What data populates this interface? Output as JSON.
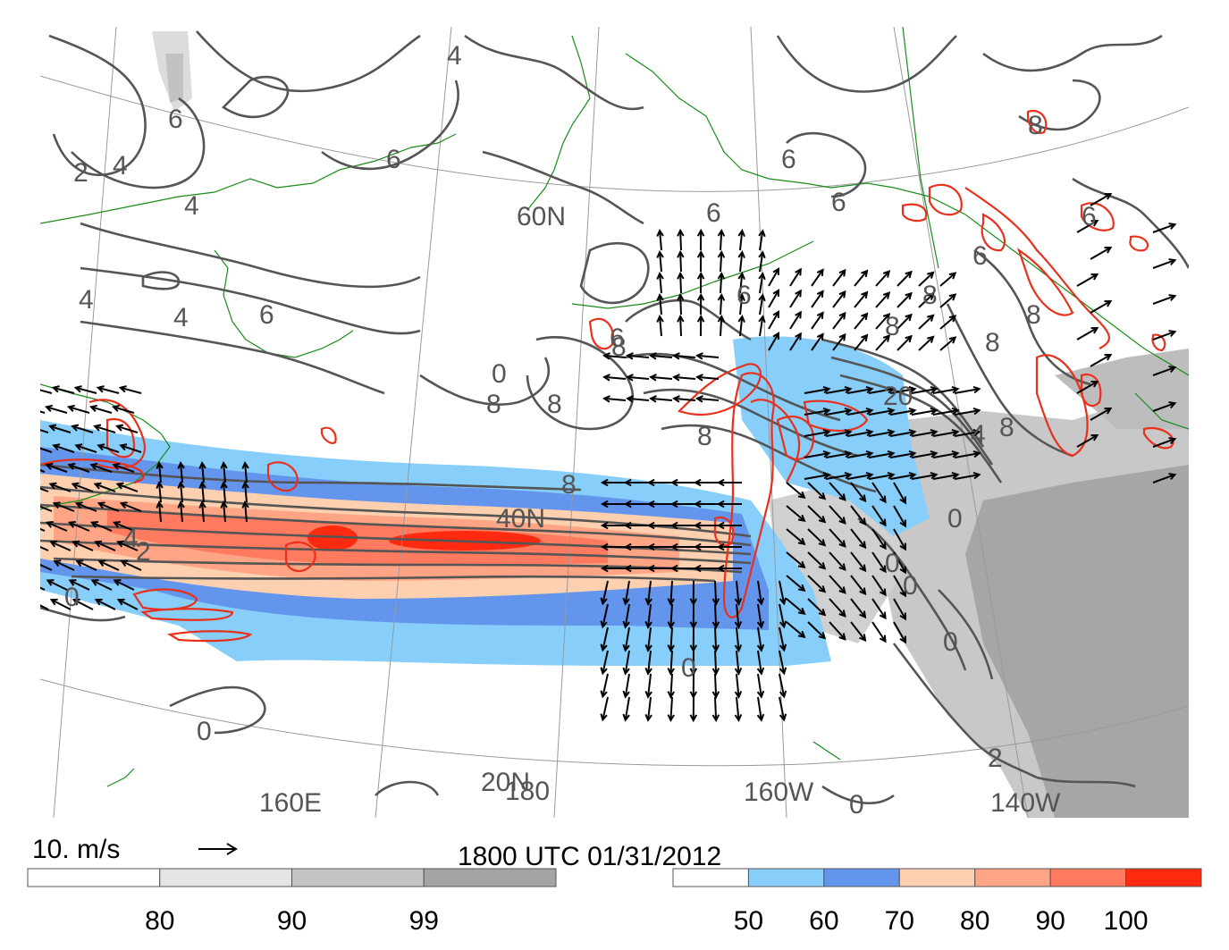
{
  "timestamp": "1800 UTC 01/31/2012",
  "vector_scale": {
    "label": "10. m/s",
    "icon": "arrow-right-icon"
  },
  "geo_labels": {
    "lat": [
      "60N",
      "40N",
      "20N"
    ],
    "lon": [
      "160E",
      "180",
      "160W",
      "140W"
    ]
  },
  "contour_labels": [
    "4",
    "6",
    "2",
    "4",
    "4",
    "4",
    "4",
    "6",
    "6",
    "6",
    "6",
    "6",
    "6",
    "6",
    "8",
    "8",
    "8",
    "8",
    "8",
    "8",
    "8",
    "8",
    "8",
    "8",
    "6",
    "6",
    "0",
    "20",
    "4",
    "8",
    "4",
    "2",
    "0",
    "0",
    "0",
    "0",
    "0",
    "0",
    "2",
    "0",
    "0"
  ],
  "colorbar_left": {
    "ticks": [
      "80",
      "90",
      "99"
    ],
    "colors": [
      "#ffffff",
      "#e4e4e4",
      "#c4c4c4",
      "#a4a4a4"
    ]
  },
  "colorbar_right": {
    "ticks": [
      "50",
      "60",
      "70",
      "80",
      "90",
      "100"
    ],
    "colors": [
      "#ffffff",
      "#87cefa",
      "#6495ed",
      "#ffd0b0",
      "#ffa585",
      "#ff7a5e",
      "#ff2a10"
    ]
  },
  "colors": {
    "contour": "#555555",
    "red_contour": "#e8301c",
    "coast": "#1a8c1a",
    "grid": "#999999",
    "arrow": "#000000"
  }
}
